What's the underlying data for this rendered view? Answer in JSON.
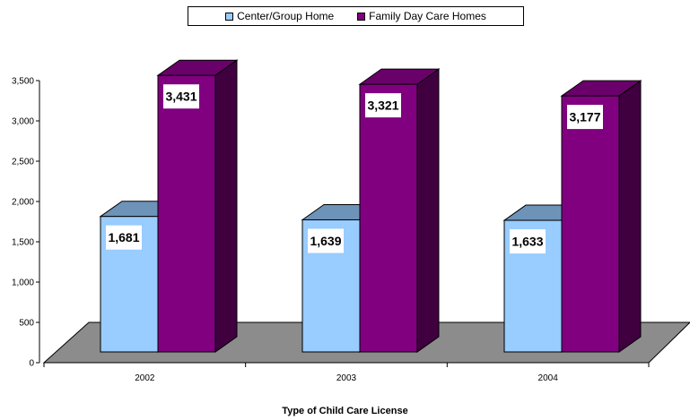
{
  "chart_data": {
    "type": "bar",
    "categories": [
      "2002",
      "2003",
      "2004"
    ],
    "series": [
      {
        "name": "Center/Group Home",
        "values": [
          1681,
          1639,
          1633
        ],
        "labels": [
          "1,681",
          "1,639",
          "1,633"
        ]
      },
      {
        "name": "Family Day Care Homes",
        "values": [
          3431,
          3321,
          3177
        ],
        "labels": [
          "3,431",
          "3,321",
          "3,177"
        ]
      }
    ],
    "xlabel": "Type of Child Care License",
    "ylabel": "",
    "ylim": [
      0,
      3500
    ],
    "yticks": [
      "0",
      "500",
      "1,000",
      "1,500",
      "2,000",
      "2,500",
      "3,000",
      "3,500"
    ],
    "legend_position": "top-center",
    "grid": false,
    "style": "3d-column"
  },
  "colors": {
    "series0_front": "#99ccff",
    "series0_top": "#6e93b8",
    "series0_side": "#7ba3cc",
    "series1_front": "#800080",
    "series1_top": "#6a006a",
    "series1_side": "#400040",
    "floor": "#8c8c8c"
  }
}
